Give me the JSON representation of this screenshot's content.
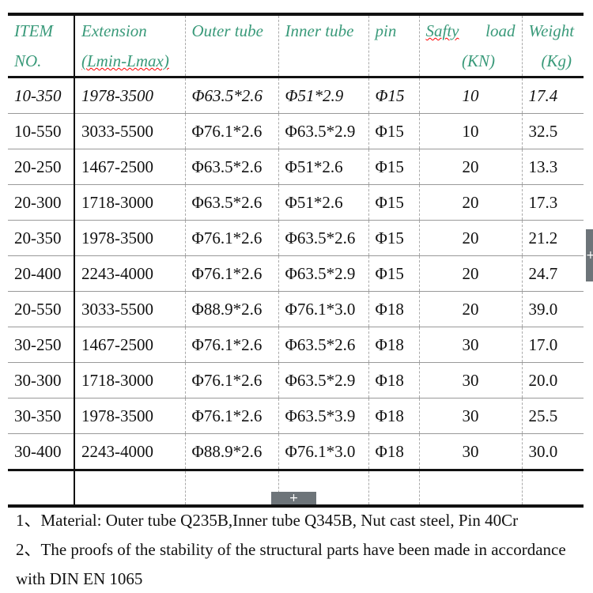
{
  "header": {
    "item": [
      "ITEM",
      "NO."
    ],
    "extension": [
      "Extension",
      "(Lmin-Lmax)"
    ],
    "outer": "Outer tube",
    "inner": "Inner tube",
    "pin": "pin",
    "load": [
      "Safty",
      "load",
      "(KN)"
    ],
    "weight": [
      "Weight",
      "(Kg)"
    ]
  },
  "rows": [
    [
      "10-350",
      "1978-3500",
      "Φ63.5*2.6",
      "Φ51*2.9",
      "Φ15",
      "10",
      "17.4"
    ],
    [
      "10-550",
      "3033-5500",
      "Φ76.1*2.6",
      "Φ63.5*2.9",
      "Φ15",
      "10",
      "32.5"
    ],
    [
      "20-250",
      "1467-2500",
      "Φ63.5*2.6",
      "Φ51*2.6",
      "Φ15",
      "20",
      "13.3"
    ],
    [
      "20-300",
      "1718-3000",
      "Φ63.5*2.6",
      "Φ51*2.6",
      "Φ15",
      "20",
      "17.3"
    ],
    [
      "20-350",
      "1978-3500",
      "Φ76.1*2.6",
      "Φ63.5*2.6",
      "Φ15",
      "20",
      "21.2"
    ],
    [
      "20-400",
      "2243-4000",
      "Φ76.1*2.6",
      "Φ63.5*2.9",
      "Φ15",
      "20",
      "24.7"
    ],
    [
      "20-550",
      "3033-5500",
      "Φ88.9*2.6",
      "Φ76.1*3.0",
      "Φ18",
      "20",
      "39.0"
    ],
    [
      "30-250",
      "1467-2500",
      "Φ76.1*2.6",
      "Φ63.5*2.6",
      "Φ18",
      "30",
      "17.0"
    ],
    [
      "30-300",
      "1718-3000",
      "Φ76.1*2.6",
      "Φ63.5*2.9",
      "Φ18",
      "30",
      "20.0"
    ],
    [
      "30-350",
      "1978-3500",
      "Φ76.1*2.6",
      "Φ63.5*3.9",
      "Φ18",
      "30",
      "25.5"
    ],
    [
      "30-400",
      "2243-4000",
      "Φ88.9*2.6",
      "Φ76.1*3.0",
      "Φ18",
      "30",
      "30.0"
    ]
  ],
  "notes": [
    "1、Material: Outer tube Q235B,Inner tube   Q345B, Nut    cast steel, Pin 40Cr",
    "2、The proofs of the stability of the structural parts have been made in accordance",
    "with DIN EN 1065"
  ],
  "add_tab": "+"
}
